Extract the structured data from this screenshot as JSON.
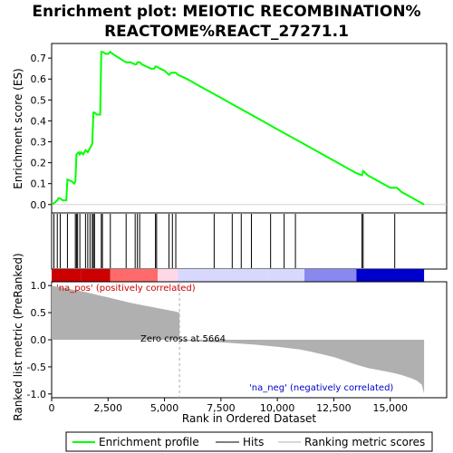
{
  "chart_data": {
    "type": "line",
    "title_line1": "Enrichment plot: MEIOTIC RECOMBINATION%",
    "title_line2": "REACTOME%REACT_27271.1",
    "top_panel": {
      "ylabel": "Enrichment score (ES)",
      "ylim": [
        -0.04,
        0.77
      ],
      "yticks": [
        "0.0",
        "0.1",
        "0.2",
        "0.3",
        "0.4",
        "0.5",
        "0.6",
        "0.7"
      ],
      "ytick_values": [
        0.0,
        0.1,
        0.2,
        0.3,
        0.4,
        0.5,
        0.6,
        0.7
      ],
      "line_color": "#00ff00",
      "es_curve": {
        "x": [
          0,
          150,
          250,
          300,
          350,
          500,
          650,
          700,
          900,
          1000,
          1050,
          1100,
          1200,
          1250,
          1300,
          1400,
          1450,
          1500,
          1600,
          1700,
          1750,
          1800,
          1850,
          1900,
          2000,
          2150,
          2200,
          2250,
          2400,
          2500,
          2600,
          2700,
          3000,
          3300,
          3500,
          3700,
          3750,
          3800,
          3900,
          4000,
          4200,
          4400,
          4550,
          4600,
          4650,
          4800,
          5000,
          5200,
          5300,
          5400,
          5500,
          5600,
          6000,
          6500,
          7000,
          7500,
          8000,
          8500,
          9000,
          9500,
          10000,
          10500,
          11000,
          11500,
          12000,
          12500,
          13000,
          13500,
          13750,
          13800,
          14000,
          14500,
          15000,
          15200,
          15300,
          15500,
          16000,
          16500
        ],
        "y": [
          0.0,
          0.01,
          0.02,
          0.03,
          0.03,
          0.02,
          0.02,
          0.12,
          0.11,
          0.1,
          0.11,
          0.24,
          0.25,
          0.24,
          0.25,
          0.24,
          0.25,
          0.26,
          0.25,
          0.27,
          0.28,
          0.29,
          0.44,
          0.44,
          0.43,
          0.43,
          0.73,
          0.73,
          0.72,
          0.72,
          0.73,
          0.72,
          0.7,
          0.68,
          0.68,
          0.67,
          0.67,
          0.68,
          0.68,
          0.67,
          0.66,
          0.65,
          0.65,
          0.66,
          0.66,
          0.65,
          0.64,
          0.62,
          0.63,
          0.63,
          0.63,
          0.62,
          0.6,
          0.57,
          0.54,
          0.51,
          0.48,
          0.45,
          0.42,
          0.39,
          0.36,
          0.33,
          0.3,
          0.27,
          0.24,
          0.21,
          0.18,
          0.15,
          0.14,
          0.16,
          0.14,
          0.11,
          0.08,
          0.08,
          0.08,
          0.06,
          0.03,
          0.0
        ]
      }
    },
    "hits": [
      100,
      250,
      380,
      700,
      1050,
      1100,
      1150,
      1250,
      1500,
      1600,
      1700,
      1800,
      1850,
      1900,
      2200,
      2250,
      2600,
      3300,
      3700,
      3800,
      3900,
      4600,
      4650,
      5200,
      5350,
      5500,
      7200,
      8000,
      8400,
      8850,
      9700,
      10300,
      10800,
      13750,
      13800,
      15200
    ],
    "bottom_panel": {
      "ylabel": "Ranked list metric (PreRanked)",
      "xlabel": "Rank in Ordered Dataset",
      "ylim": [
        -1.07,
        1.07
      ],
      "yticks": [
        "1.0",
        "0.5",
        "0.0",
        "-0.5",
        "-1.0"
      ],
      "ytick_values": [
        1.0,
        0.5,
        0.0,
        -0.5,
        -1.0
      ],
      "xlim": [
        0,
        17500
      ],
      "xticks": [
        "0",
        "2,500",
        "5,000",
        "7,500",
        "10,000",
        "12,500",
        "15,000"
      ],
      "xtick_values": [
        0,
        2500,
        5000,
        7500,
        10000,
        12500,
        15000
      ],
      "zero_cross_label": "Zero cross at 5664",
      "zero_cross": 5664,
      "pos_label": "'na_pos' (positively correlated)",
      "neg_label": "'na_neg' (negatively correlated)",
      "metric_curve": {
        "x": [
          0,
          50,
          200,
          500,
          1000,
          1500,
          2000,
          2500,
          3000,
          3500,
          4000,
          4500,
          5000,
          5500,
          5664,
          5665,
          6000,
          7000,
          8000,
          9000,
          10000,
          11000,
          11500,
          12000,
          12500,
          13000,
          13500,
          14000,
          14500,
          15000,
          15500,
          16000,
          16200,
          16400,
          16500
        ],
        "y": [
          1.05,
          0.99,
          0.98,
          0.96,
          0.92,
          0.88,
          0.83,
          0.78,
          0.73,
          0.68,
          0.64,
          0.6,
          0.56,
          0.52,
          0.5,
          -0.01,
          -0.02,
          -0.04,
          -0.06,
          -0.09,
          -0.13,
          -0.18,
          -0.22,
          -0.27,
          -0.32,
          -0.39,
          -0.46,
          -0.52,
          -0.56,
          -0.6,
          -0.65,
          -0.72,
          -0.76,
          -0.83,
          -1.0
        ]
      },
      "fill_color": "#b0b0b0"
    },
    "gradient_colors": [
      "#cc0000",
      "#ff6a6a",
      "#ffd8e6",
      "#d8d8ff",
      "#8888ee",
      "#0000cc"
    ],
    "gradient_stops": [
      0,
      1300,
      2600,
      4700,
      5600,
      9600,
      11200,
      12000,
      13500,
      16500
    ],
    "legend": {
      "entries": [
        {
          "label": "Enrichment profile",
          "color": "#00ff00"
        },
        {
          "label": "Hits",
          "color": "#000000"
        },
        {
          "label": "Ranking metric scores",
          "color": "#b0b0b0"
        }
      ]
    }
  }
}
